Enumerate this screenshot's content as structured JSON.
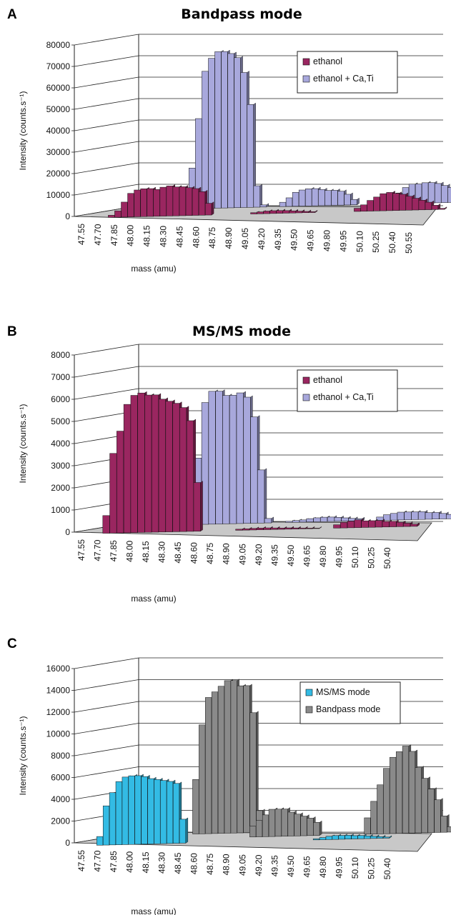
{
  "colors": {
    "ethanol": "#9a2660",
    "ethanol_plus_ca_ti": "#a8a8dc",
    "msms_mode": "#33bbe4",
    "bandpass_mode": "#8a8a8a",
    "floor": "#c8c8c8"
  },
  "chart_data": [
    {
      "panel": "A",
      "type": "bar",
      "title": "Bandpass mode",
      "xlabel": "mass (amu)",
      "ylabel": "Intensity (counts.s⁻¹)",
      "ylim": [
        0,
        80000
      ],
      "yticks": [
        "0",
        "10000",
        "20000",
        "30000",
        "40000",
        "50000",
        "60000",
        "70000",
        "80000"
      ],
      "xticks": [
        "47.55",
        "47.70",
        "47.85",
        "48.00",
        "48.15",
        "48.30",
        "48.45",
        "48.60",
        "48.75",
        "48.90",
        "49.05",
        "49.20",
        "49.35",
        "49.50",
        "49.65",
        "49.80",
        "49.95",
        "50.10",
        "50.25",
        "50.40",
        "50.55"
      ],
      "x_start": 47.55,
      "x_step": 0.05,
      "legend_position": "top-right",
      "grid": true,
      "series": [
        {
          "name": "ethanol",
          "color_key": "ethanol",
          "values": [
            0,
            0,
            0,
            1000,
            3000,
            7000,
            11000,
            12500,
            13000,
            13000,
            12500,
            13500,
            14000,
            13500,
            13500,
            13000,
            12500,
            11000,
            5500,
            0,
            0,
            0,
            0,
            0,
            0,
            600,
            900,
            1200,
            1300,
            1300,
            1200,
            1000,
            800,
            600,
            400,
            0,
            0,
            0,
            0,
            0,
            0,
            1500,
            3000,
            5000,
            6500,
            8000,
            8500,
            8000,
            7500,
            6500,
            5500,
            4500,
            3500,
            2000,
            500
          ]
        },
        {
          "name": "ethanol + Ca,Ti",
          "color_key": "ethanol_plus_ca_ti",
          "values": [
            0,
            0,
            0,
            0,
            0,
            0,
            0,
            0,
            0,
            0,
            0,
            19000,
            42000,
            64000,
            70000,
            73000,
            73000,
            72000,
            70000,
            63000,
            48000,
            10000,
            1000,
            0,
            0,
            2000,
            4000,
            6500,
            7500,
            8000,
            8000,
            7500,
            7000,
            7000,
            6500,
            5000,
            2500,
            0,
            0,
            0,
            0,
            500,
            2000,
            5000,
            7500,
            9000,
            9000,
            9500,
            9500,
            9000,
            8000,
            7000,
            5500,
            3000,
            0
          ]
        }
      ]
    },
    {
      "panel": "B",
      "type": "bar",
      "title": "MS/MS mode",
      "xlabel": "mass (amu)",
      "ylabel": "Intensity (counts.s⁻¹)",
      "ylim": [
        0,
        8000
      ],
      "yticks": [
        "0",
        "1000",
        "2000",
        "3000",
        "4000",
        "5000",
        "6000",
        "7000",
        "8000"
      ],
      "xticks": [
        "47.55",
        "47.70",
        "47.85",
        "48.00",
        "48.15",
        "48.30",
        "48.45",
        "48.60",
        "48.75",
        "48.90",
        "49.05",
        "49.20",
        "49.35",
        "49.50",
        "49.65",
        "49.80",
        "49.95",
        "50.10",
        "50.25",
        "50.40"
      ],
      "x_start": 47.55,
      "x_step": 0.05,
      "legend_position": "top-right",
      "grid": true,
      "series": [
        {
          "name": "ethanol",
          "color_key": "ethanol",
          "values": [
            0,
            0,
            800,
            3600,
            4600,
            5800,
            6200,
            6300,
            6200,
            6200,
            6000,
            5900,
            5800,
            5600,
            5000,
            2200,
            0,
            0,
            0,
            0,
            0,
            50,
            60,
            70,
            80,
            80,
            70,
            60,
            60,
            50,
            40,
            30,
            20,
            0,
            0,
            150,
            250,
            300,
            350,
            300,
            300,
            300,
            250,
            250,
            200,
            150,
            100,
            0,
            0
          ]
        },
        {
          "name": "ethanol + Ca,Ti",
          "color_key": "ethanol_plus_ca_ti",
          "values": [
            0,
            0,
            0,
            0,
            0,
            0,
            0,
            0,
            0,
            0,
            0,
            3000,
            5500,
            6000,
            6000,
            5800,
            5800,
            5900,
            5700,
            4800,
            2400,
            200,
            0,
            0,
            50,
            80,
            100,
            150,
            180,
            200,
            200,
            180,
            150,
            120,
            100,
            0,
            0,
            150,
            250,
            300,
            350,
            350,
            350,
            350,
            300,
            300,
            250,
            200,
            150,
            0
          ]
        }
      ]
    },
    {
      "panel": "C",
      "type": "bar",
      "title": "",
      "xlabel": "mass (amu)",
      "ylabel": "Intensity (counts.s⁻¹)",
      "ylim": [
        0,
        16000
      ],
      "yticks": [
        "0",
        "2000",
        "4000",
        "6000",
        "8000",
        "10000",
        "12000",
        "14000",
        "16000"
      ],
      "xticks": [
        "47.55",
        "47.70",
        "47.85",
        "48.00",
        "48.15",
        "48.30",
        "48.45",
        "48.60",
        "48.75",
        "48.90",
        "49.05",
        "49.20",
        "49.35",
        "49.50",
        "49.65",
        "49.80",
        "49.95",
        "50.10",
        "50.25",
        "50.40"
      ],
      "x_start": 47.55,
      "x_step": 0.05,
      "legend_position": "top-right",
      "grid": true,
      "series": [
        {
          "name": "MS/MS mode",
          "color_key": "msms_mode",
          "values": [
            0,
            0,
            800,
            3600,
            4800,
            5800,
            6200,
            6300,
            6300,
            6200,
            6000,
            5900,
            5800,
            5700,
            5500,
            2200,
            0,
            0,
            0,
            0,
            0,
            0,
            0,
            0,
            0,
            0,
            0,
            0,
            0,
            0,
            0,
            0,
            0,
            0,
            0,
            0,
            100,
            200,
            300,
            350,
            350,
            350,
            300,
            300,
            250,
            200,
            150,
            100,
            0
          ]
        },
        {
          "name": "Bandpass mode",
          "color_key": "bandpass_mode",
          "values": [
            0,
            0,
            0,
            0,
            0,
            0,
            0,
            0,
            0,
            0,
            0,
            0,
            0,
            0,
            0,
            0,
            0,
            0,
            0,
            0,
            0,
            0,
            0,
            1000,
            1500,
            2000,
            2500,
            2500,
            2500,
            2200,
            2000,
            1800,
            1600,
            1200,
            0,
            0,
            0,
            0,
            0,
            0,
            0,
            1500,
            3000,
            4500,
            6000,
            7000,
            7500,
            8000,
            7500,
            6000,
            5000,
            4000,
            3000,
            1500,
            500
          ]
        },
        {
          "name": "",
          "color_key": "bandpass_mode",
          "hidden_in_legend": true,
          "values": [
            0,
            0,
            0,
            0,
            0,
            0,
            0,
            0,
            0,
            0,
            0,
            5000,
            10000,
            12500,
            13000,
            13500,
            14000,
            14000,
            13500,
            13500,
            11000,
            2000,
            0,
            0,
            0,
            0,
            0,
            0,
            0,
            0,
            0,
            0,
            0,
            0,
            0,
            0,
            0,
            0,
            0,
            0,
            0,
            0,
            0,
            0,
            0,
            0,
            0,
            0,
            0,
            0,
            0,
            0,
            0,
            0,
            0
          ]
        }
      ]
    }
  ]
}
